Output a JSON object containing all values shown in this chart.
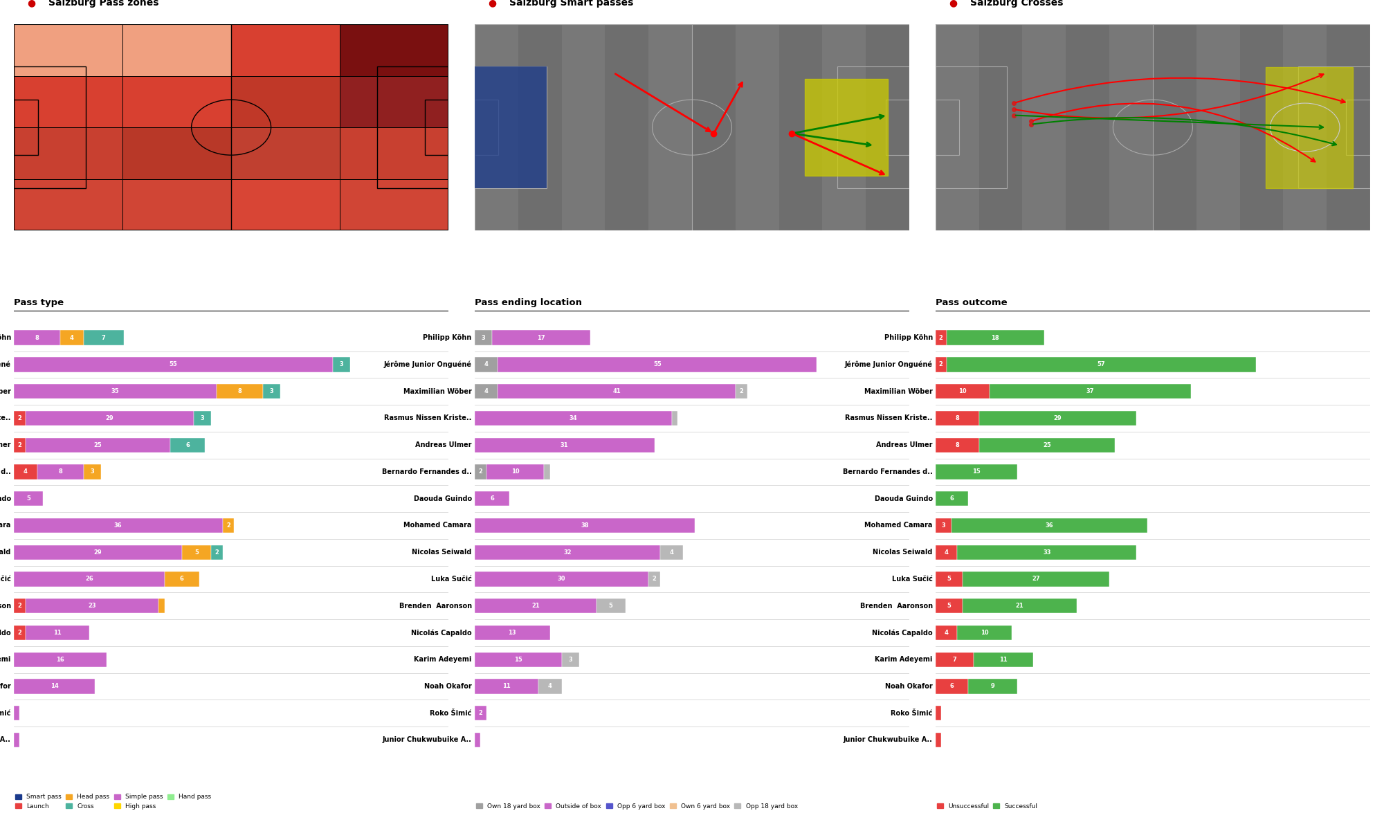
{
  "title1": "Salzburg Pass zones",
  "title2": "Salzburg Smart passes",
  "title3": "Salzburg Crosses",
  "section1_label": "Pass type",
  "section2_label": "Pass ending location",
  "section3_label": "Pass outcome",
  "players": [
    "Philipp Köhn",
    "Jérôme Junior Onguéné",
    "Maximilian Wöber",
    "Rasmus Nissen Kriste..",
    "Andreas Ulmer",
    "Bernardo Fernandes d..",
    "Daouda Guindo",
    "Mohamed Camara",
    "Nicolas Seiwald",
    "Luka Sučić",
    "Brenden  Aaronson",
    "Nicolás Capaldo",
    "Karim Adeyemi",
    "Noah Okafor",
    "Roko Šimić",
    "Junior Chukwubuike A.."
  ],
  "pass_type": {
    "simple_pass": [
      8,
      55,
      35,
      29,
      25,
      8,
      5,
      36,
      29,
      26,
      23,
      11,
      16,
      14,
      1,
      1
    ],
    "launch": [
      0,
      0,
      0,
      2,
      2,
      4,
      0,
      0,
      0,
      0,
      2,
      2,
      0,
      0,
      0,
      0
    ],
    "head_pass": [
      4,
      0,
      8,
      0,
      0,
      3,
      0,
      2,
      5,
      6,
      1,
      0,
      0,
      0,
      0,
      0
    ],
    "cross": [
      7,
      3,
      3,
      3,
      6,
      0,
      0,
      0,
      2,
      0,
      0,
      0,
      0,
      0,
      0,
      0
    ],
    "high_pass": [
      0,
      0,
      0,
      0,
      0,
      0,
      0,
      0,
      0,
      0,
      0,
      0,
      0,
      0,
      0,
      0
    ],
    "hand_pass": [
      0,
      0,
      0,
      0,
      0,
      0,
      0,
      0,
      0,
      0,
      0,
      0,
      0,
      0,
      0,
      0
    ]
  },
  "pass_location": {
    "own_18": [
      3,
      4,
      4,
      0,
      0,
      2,
      0,
      0,
      0,
      0,
      0,
      0,
      0,
      0,
      0,
      0
    ],
    "outside_box": [
      17,
      55,
      41,
      34,
      31,
      10,
      6,
      38,
      32,
      30,
      21,
      13,
      15,
      11,
      2,
      1
    ],
    "opp_6": [
      0,
      0,
      0,
      0,
      0,
      0,
      0,
      0,
      0,
      0,
      0,
      0,
      0,
      0,
      0,
      0
    ],
    "own_6": [
      0,
      0,
      0,
      0,
      0,
      0,
      0,
      0,
      0,
      0,
      0,
      0,
      0,
      0,
      0,
      0
    ],
    "opp_18": [
      0,
      0,
      2,
      1,
      0,
      1,
      0,
      0,
      4,
      2,
      5,
      0,
      3,
      4,
      0,
      0
    ]
  },
  "pass_outcome": {
    "unsuccessful": [
      2,
      2,
      10,
      8,
      8,
      0,
      0,
      3,
      4,
      5,
      5,
      4,
      7,
      6,
      1,
      1
    ],
    "successful": [
      18,
      57,
      37,
      29,
      25,
      15,
      6,
      36,
      33,
      27,
      21,
      10,
      11,
      9,
      0,
      0
    ]
  },
  "colors": {
    "simple_pass": "#c966c9",
    "launch": "#e84040",
    "head_pass": "#f5a623",
    "cross": "#4db39e",
    "own_18": "#a0a0a0",
    "outside_box": "#c966c9",
    "opp_6": "#5555cc",
    "own_6": "#f0c090",
    "opp_18": "#b8b8b8",
    "unsuccessful": "#e84040",
    "successful": "#4db34d"
  }
}
